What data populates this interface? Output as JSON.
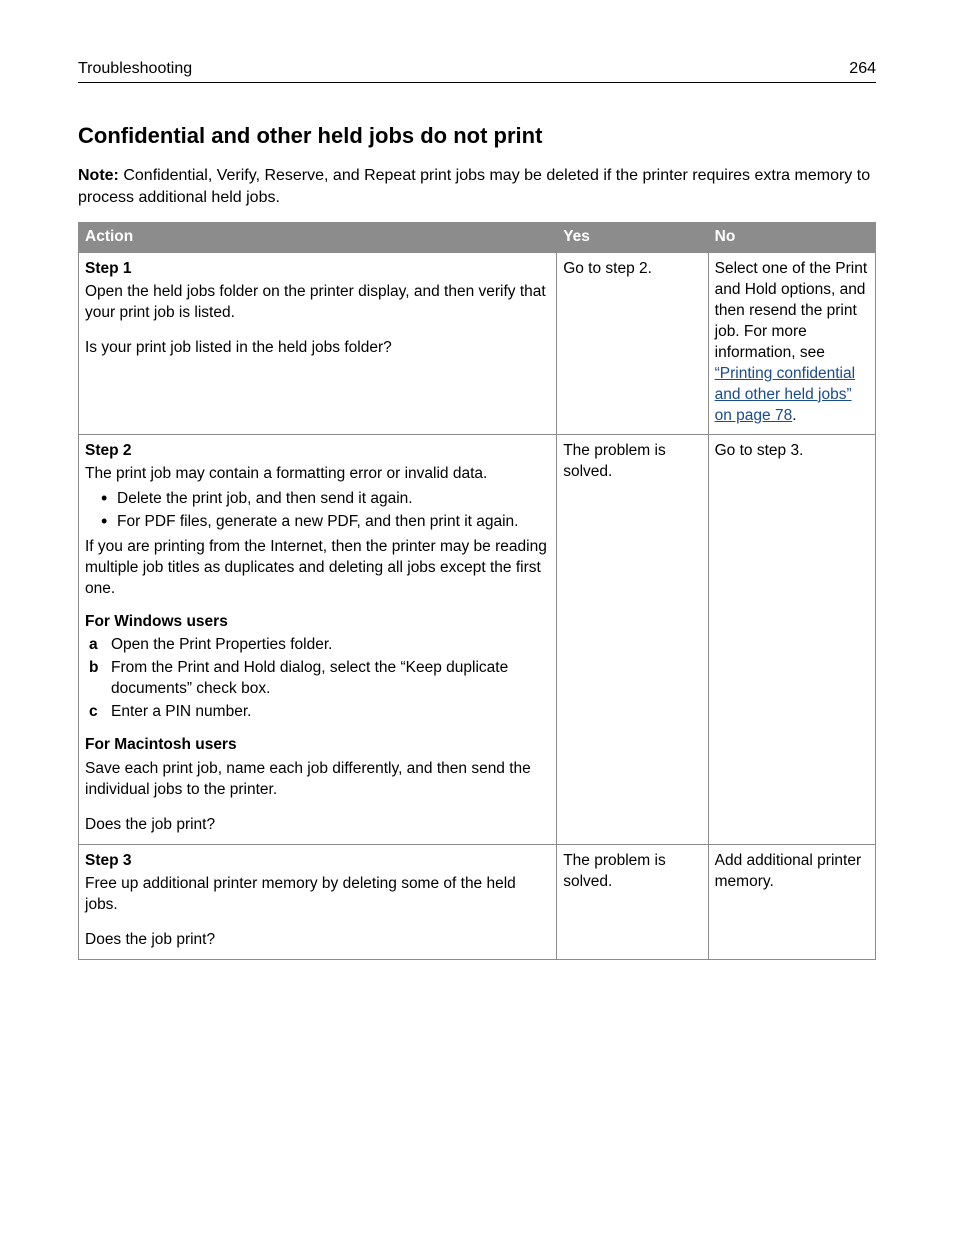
{
  "header": {
    "section": "Troubleshooting",
    "page_number": "264"
  },
  "title": "Confidential and other held jobs do not print",
  "note": {
    "label": "Note:",
    "text": "Confidential, Verify, Reserve, and Repeat print jobs may be deleted if the printer requires extra memory to process additional held jobs."
  },
  "table": {
    "columns": {
      "action": "Action",
      "yes": "Yes",
      "no": "No"
    },
    "rows": {
      "step1": {
        "label": "Step 1",
        "body": "Open the held jobs folder on the printer display, and then verify that your print job is listed.",
        "question": "Is your print job listed in the held jobs folder?",
        "yes": "Go to step 2.",
        "no_prefix": "Select one of the Print and Hold options, and then resend the print job. For more information, see ",
        "no_link": "“Printing confidential and other held jobs” on page 78",
        "no_suffix": "."
      },
      "step2": {
        "label": "Step 2",
        "intro": "The print job may contain a formatting error or invalid data.",
        "bullets": {
          "b1": "Delete the print job, and then send it again.",
          "b2": "For PDF files, generate a new PDF, and then print it again."
        },
        "internet_note": "If you are printing from the Internet, then the printer may be reading multiple job titles as duplicates and deleting all jobs except the first one.",
        "windows_heading": "For Windows users",
        "windows": {
          "a": "Open the Print Properties folder.",
          "b": "From the Print and Hold dialog, select the “Keep duplicate documents” check box.",
          "c": "Enter a PIN number."
        },
        "mac_heading": "For Macintosh users",
        "mac_body": "Save each print job, name each job differently, and then send the individual jobs to the printer.",
        "question": "Does the job print?",
        "yes": "The problem is solved.",
        "no": "Go to step 3."
      },
      "step3": {
        "label": "Step 3",
        "body": "Free up additional printer memory by deleting some of the held jobs.",
        "question": "Does the job print?",
        "yes": "The problem is solved.",
        "no": "Add additional printer memory."
      }
    }
  }
}
